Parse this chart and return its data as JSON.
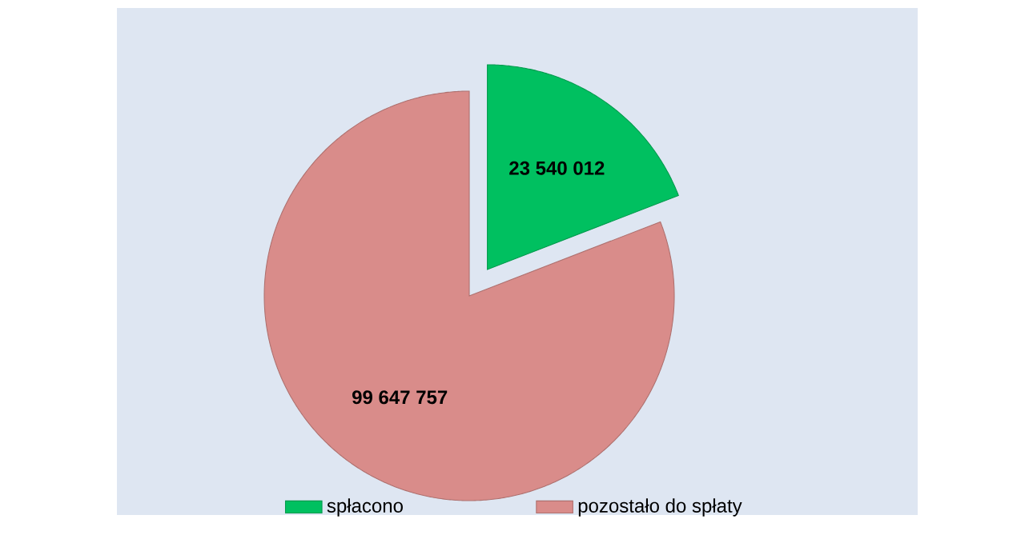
{
  "chart_data": {
    "type": "pie",
    "categories": [
      "spłacono",
      "pozostało do spłaty"
    ],
    "values": [
      23540012,
      99647757
    ],
    "colors": [
      "#00c060",
      "#d98c8a"
    ],
    "value_labels": [
      "23 540 012",
      "99 647 757"
    ],
    "legend": "bottom"
  }
}
